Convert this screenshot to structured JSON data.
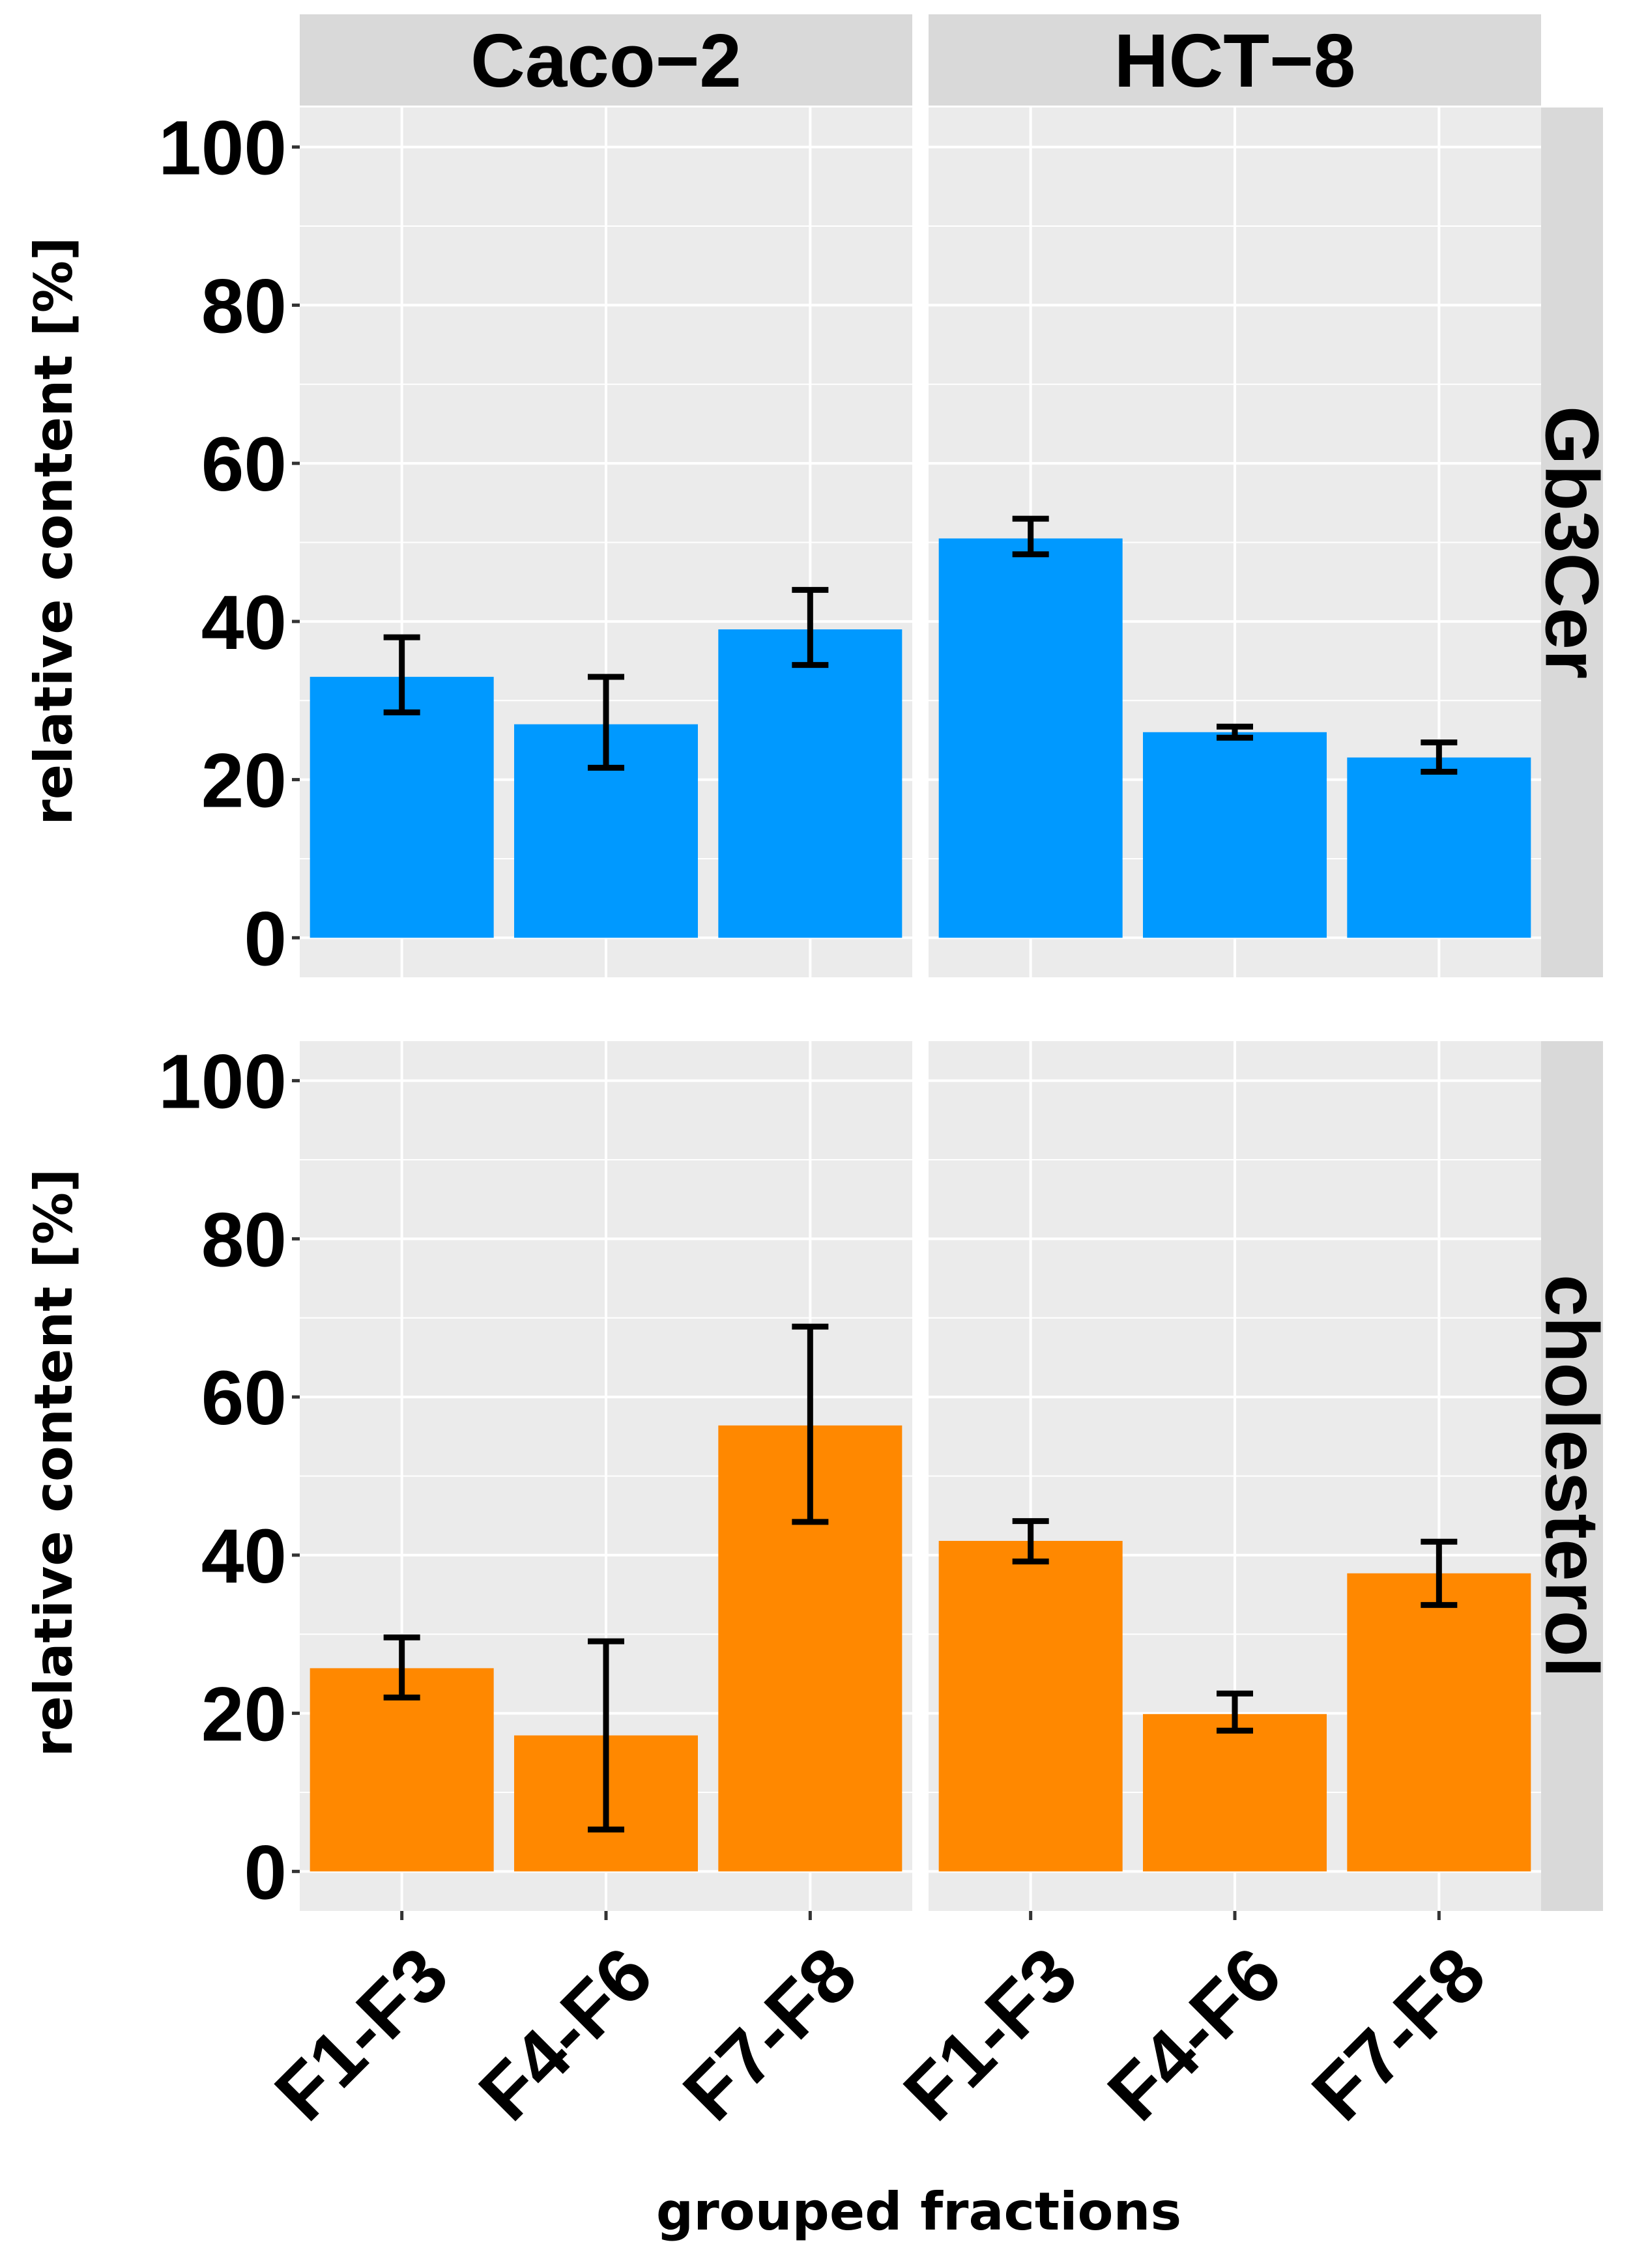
{
  "chart_data": {
    "type": "bar",
    "layout": "facet-grid",
    "x_label": "grouped fractions",
    "y_label": "relative content [%]",
    "ylim": [
      -5,
      105
    ],
    "y_ticks": [
      0,
      20,
      40,
      60,
      80,
      100
    ],
    "y_tick_labels": [
      "0",
      "20",
      "40",
      "60",
      "80",
      "100"
    ],
    "categories": [
      "F1-F3",
      "F4-F6",
      "F7-F8"
    ],
    "columns": [
      "Caco−2",
      "HCT−8"
    ],
    "rows": [
      {
        "label": "Gb3Cer",
        "color": "#0099ff"
      },
      {
        "label": "cholesterol",
        "color": "#ff8800"
      }
    ],
    "panels": [
      {
        "row": "Gb3Cer",
        "column": "Caco−2",
        "values": [
          33.0,
          27.0,
          39.0
        ],
        "error_low": [
          28.5,
          21.5,
          34.5
        ],
        "error_high": [
          38.0,
          33.0,
          44.0
        ]
      },
      {
        "row": "Gb3Cer",
        "column": "HCT−8",
        "values": [
          50.5,
          26.0,
          22.8
        ],
        "error_low": [
          48.5,
          25.3,
          21.0
        ],
        "error_high": [
          53.0,
          26.7,
          24.7
        ]
      },
      {
        "row": "cholesterol",
        "column": "Caco−2",
        "values": [
          25.7,
          17.2,
          56.4
        ],
        "error_low": [
          22.0,
          5.3,
          44.2
        ],
        "error_high": [
          29.6,
          29.1,
          68.9
        ]
      },
      {
        "row": "cholesterol",
        "column": "HCT−8",
        "values": [
          41.8,
          19.9,
          37.7
        ],
        "error_low": [
          39.2,
          17.8,
          33.7
        ],
        "error_high": [
          44.3,
          22.5,
          41.7
        ]
      }
    ]
  }
}
